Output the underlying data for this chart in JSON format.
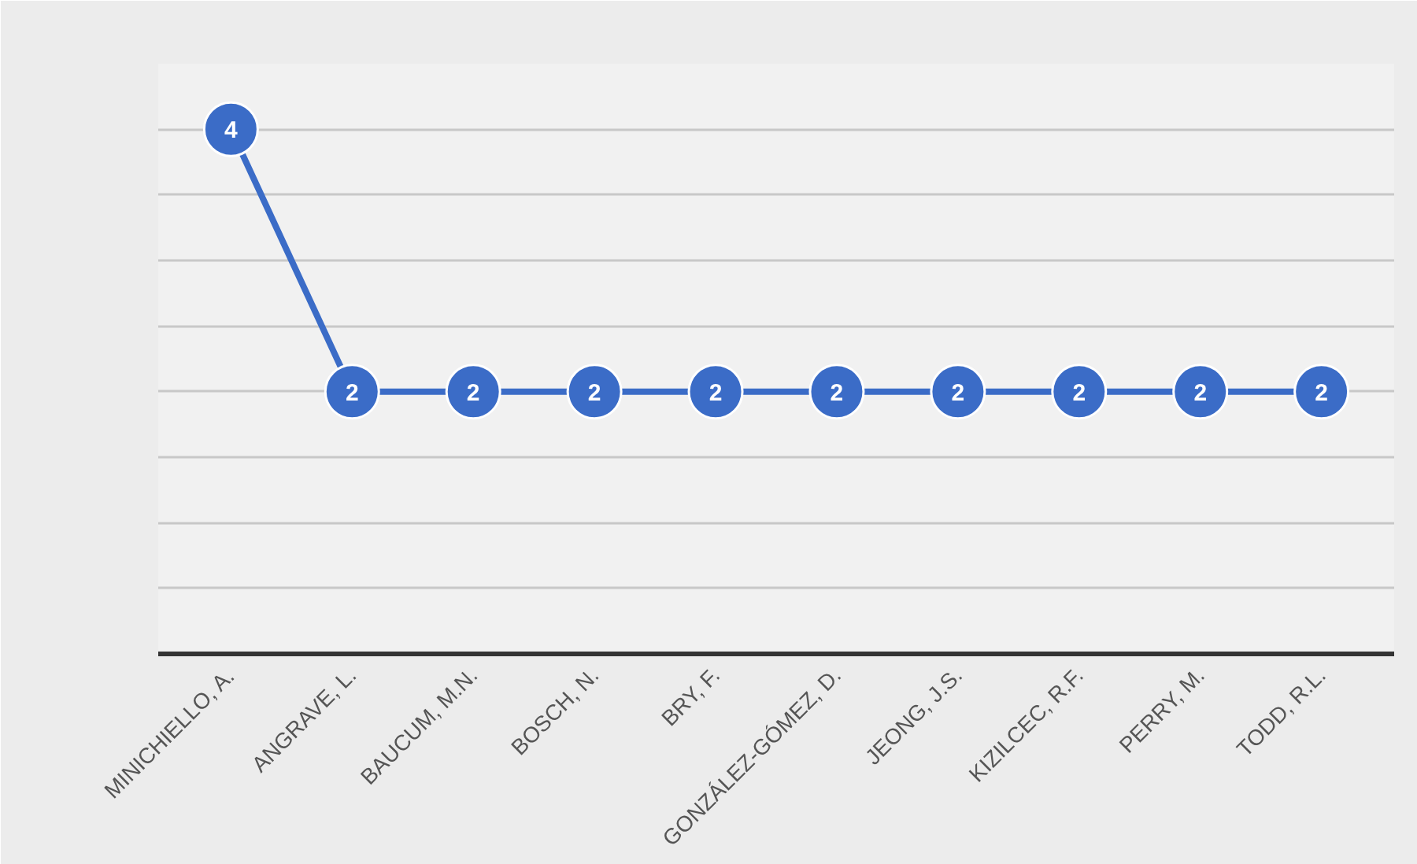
{
  "chart_data": {
    "type": "line",
    "categories": [
      "MINICHIELLO, A.",
      "ANGRAVE, L.",
      "BAUCUM, M.N.",
      "BOSCH, N.",
      "BRY, F.",
      "GONZÁLEZ-GÓMEZ, D.",
      "JEONG, J.S.",
      "KIZILCEC, R.F.",
      "PERRY, M.",
      "TODD, R.L."
    ],
    "series": [
      {
        "color": "#3b6cc7",
        "values": [
          4,
          2,
          2,
          2,
          2,
          2,
          2,
          2,
          2,
          2
        ]
      }
    ],
    "ylim": [
      0,
      4.5
    ],
    "yticks": [
      {
        "value": 0.5,
        "label": null
      },
      {
        "value": 1,
        "label": null
      },
      {
        "value": 1.5,
        "label": null
      },
      {
        "value": 2,
        "label": null
      },
      {
        "value": 2.5,
        "label": null
      },
      {
        "value": 3,
        "label": null
      },
      {
        "value": 3.5,
        "label": null
      },
      {
        "value": 4,
        "label": null
      },
      {
        "value": 4.5,
        "label": null
      }
    ],
    "grid": "y",
    "tick_labels": "x",
    "marker": "circle",
    "line_style": "solid",
    "data_labels": true
  }
}
